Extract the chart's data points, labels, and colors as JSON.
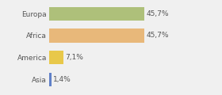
{
  "categories": [
    "Europa",
    "Africa",
    "America",
    "Asia"
  ],
  "values": [
    45.7,
    45.7,
    7.1,
    1.4
  ],
  "bar_colors": [
    "#aec07a",
    "#e8b87a",
    "#e8c84a",
    "#6080c8"
  ],
  "labels": [
    "45,7%",
    "45,7%",
    "7,1%",
    "1,4%"
  ],
  "background_color": "#f0f0f0",
  "xlim": [
    0,
    70
  ],
  "bar_height": 0.62,
  "label_fontsize": 6.5,
  "ytick_fontsize": 6.5
}
